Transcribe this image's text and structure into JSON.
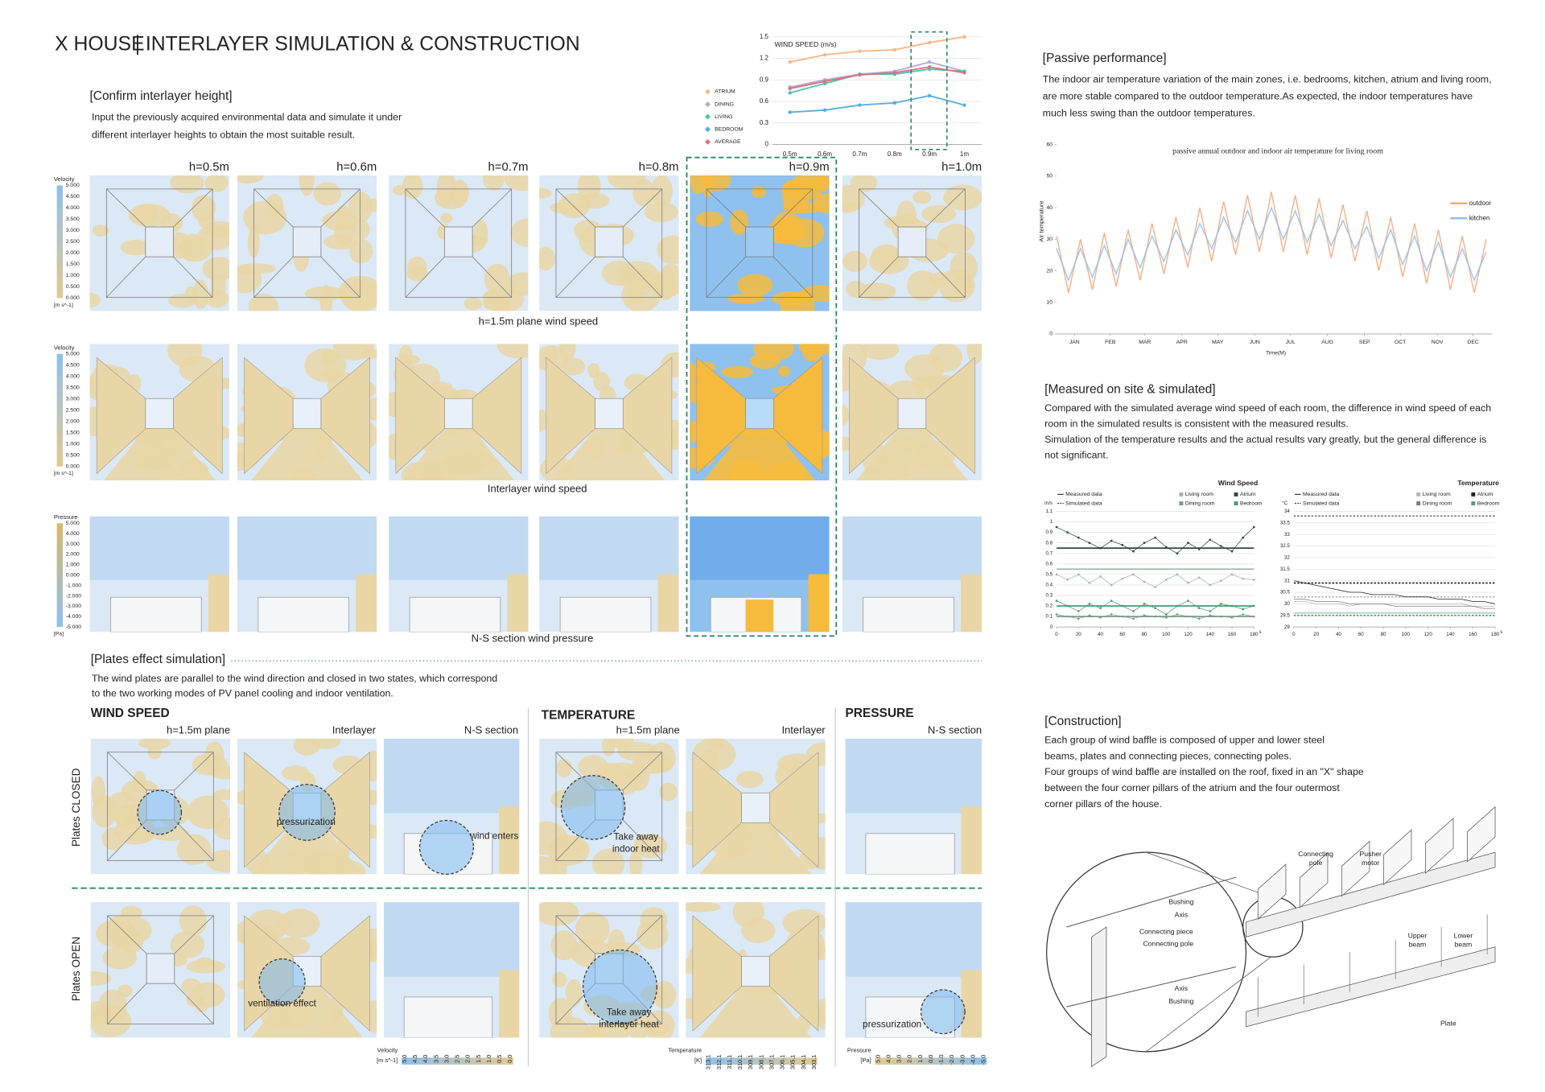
{
  "header": {
    "title": "X HOUSE",
    "subtitle": "INTERLAYER SIMULATION & CONSTRUCTION"
  },
  "interlayer": {
    "heading": "[Confirm interlayer height]",
    "text": [
      "Input the previously acquired environmental data and simulate it under",
      "different interlayer heights to obtain the most suitable result."
    ],
    "heights": [
      "h=0.5m",
      "h=0.6m",
      "h=0.7m",
      "h=0.8m",
      "h=0.9m",
      "h=1.0m"
    ],
    "rows": [
      "h=1.5m plane wind speed",
      "Interlayer wind speed",
      "N-S section wind pressure"
    ],
    "velocity_legend": {
      "title": "Velocity",
      "ticks": [
        "5.000",
        "4.500",
        "4.000",
        "3.500",
        "3.000",
        "2.500",
        "2.000",
        "1.500",
        "1.000",
        "0.500",
        "0.000"
      ],
      "unit": "[m s^-1]"
    },
    "pressure_legend": {
      "title": "Pressure",
      "ticks": [
        "5.000",
        "4.000",
        "3.000",
        "2.000",
        "1.000",
        "0.000",
        "-1.000",
        "-2.000",
        "-3.000",
        "-4.000",
        "-5.000"
      ],
      "unit": "[Pa]"
    }
  },
  "plates": {
    "heading": "[Plates effect simulation]",
    "text": [
      "The wind plates are parallel to the wind direction and closed in two states, which correspond",
      "to the two working modes of PV panel cooling and indoor ventilation."
    ],
    "groups": [
      "WIND SPEED",
      "TEMPERATURE",
      "PRESSURE"
    ],
    "columns": [
      "h=1.5m plane",
      "Interlayer",
      "N-S section",
      "h=1.5m plane",
      "Interlayer",
      "N-S section"
    ],
    "states": [
      "Plates CLOSED",
      "Plates OPEN"
    ],
    "annotations": [
      {
        "lines": [
          "pressurization"
        ]
      },
      {
        "lines": [
          "wind enters"
        ]
      },
      {
        "lines": [
          "Take away",
          "indoor heat"
        ]
      },
      {
        "lines": [
          "ventilation effect"
        ]
      },
      {
        "lines": [
          "Take away",
          "interlayer heat"
        ]
      },
      {
        "lines": [
          "pressurization"
        ]
      }
    ],
    "legends": [
      {
        "title": "Velocity",
        "unit": "[m s^-1]",
        "ticks": [
          "5.0",
          "4.5",
          "4.0",
          "3.5",
          "3.0",
          "2.5",
          "2.0",
          "1.5",
          "1.0",
          "0.5",
          "0.0"
        ]
      },
      {
        "title": "Temperature",
        "unit": "[K]",
        "ticks": [
          "313.1",
          "312.1",
          "311.1",
          "310.1",
          "309.1",
          "308.1",
          "307.1",
          "306.1",
          "305.1",
          "304.1",
          "303.1"
        ]
      },
      {
        "title": "Pressure",
        "unit": "[Pa]",
        "ticks": [
          "5.0",
          "4.0",
          "3.0",
          "2.0",
          "1.0",
          "0.0",
          "-1.0",
          "-2.0",
          "-3.0",
          "-4.0",
          "-5.0"
        ]
      }
    ]
  },
  "passive": {
    "heading": "[Passive performance]",
    "text": [
      "The indoor air temperature variation of the main zones, i.e. bedrooms, kitchen, atrium and living room,",
      "are more stable compared to the outdoor temperature.As expected, the indoor temperatures have",
      "much less swing than the outdoor temperatures."
    ]
  },
  "measured": {
    "heading": "[Measured on site & simulated]",
    "text": [
      "Compared with the simulated average wind speed of each room, the difference in wind speed of each",
      "room in the simulated results is consistent with the measured results.",
      "Simulation of the temperature results and the actual results vary greatly, but the general difference is",
      "not significant."
    ]
  },
  "construction": {
    "heading": "[Construction]",
    "text": [
      "Each group of wind baffle is composed of upper and lower steel",
      "beams, plates and connecting pieces, connecting poles.",
      "Four groups of wind baffle are installed on the roof, fixed in an \"X\" shape",
      "between the four corner pillars of the atrium and the four outermost",
      "corner pillars of the house."
    ],
    "labels": [
      {
        "lines": [
          "Connecting",
          "pole"
        ]
      },
      {
        "lines": [
          "Pusher",
          "motor"
        ]
      },
      {
        "lines": [
          "Bushing"
        ]
      },
      {
        "lines": [
          "Axis"
        ]
      },
      {
        "lines": [
          "Connecting piece"
        ]
      },
      {
        "lines": [
          "Connecting pole"
        ]
      },
      {
        "lines": [
          "Upper",
          "beam"
        ]
      },
      {
        "lines": [
          "Lower",
          "beam"
        ]
      },
      {
        "lines": [
          "Axis"
        ]
      },
      {
        "lines": [
          "Bushing"
        ]
      },
      {
        "lines": [
          "Plate"
        ]
      }
    ]
  },
  "chart_data": [
    {
      "type": "line",
      "title": "WIND SPEED (m/s)",
      "categories": [
        "0.5m",
        "0.6m",
        "0.7m",
        "0.8m",
        "0.9m",
        "1m"
      ],
      "ylim": [
        0,
        1.5
      ],
      "yticks": [
        0,
        0.3,
        0.6,
        0.9,
        1.2,
        1.5
      ],
      "grid": true,
      "markers": true,
      "series": [
        {
          "name": "ATRIUM",
          "color": "#f5b88a",
          "values": [
            1.15,
            1.25,
            1.3,
            1.32,
            1.42,
            1.5
          ]
        },
        {
          "name": "DINING",
          "color": "#b8a8d8",
          "values": [
            0.8,
            0.9,
            0.98,
            1.02,
            1.15,
            1.02
          ]
        },
        {
          "name": "LIVING",
          "color": "#4fc3b5",
          "values": [
            0.72,
            0.85,
            0.98,
            0.98,
            1.05,
            1.02
          ]
        },
        {
          "name": "BEDROOM",
          "color": "#5aaee0",
          "values": [
            0.45,
            0.48,
            0.55,
            0.58,
            0.68,
            0.55
          ]
        },
        {
          "name": "AVERAGE",
          "color": "#d9747a",
          "values": [
            0.78,
            0.88,
            0.97,
            1.0,
            1.08,
            1.0
          ]
        }
      ]
    },
    {
      "type": "line",
      "title": "passive annual outdoor and indoor air temperature for living room",
      "y_label": "Air temperature",
      "x_label": "Time(M)",
      "x": [
        0,
        10,
        20,
        30,
        40,
        50,
        60,
        70,
        80,
        90,
        100,
        110,
        120,
        130,
        140,
        150,
        160,
        170,
        180,
        190,
        200,
        210,
        220,
        230,
        240,
        250,
        260,
        270,
        280,
        290,
        300,
        310,
        320,
        330,
        340,
        350,
        360
      ],
      "xlim": [
        0,
        365
      ],
      "xticks": [
        {
          "value": 15,
          "label": "JAN"
        },
        {
          "value": 45,
          "label": "FEB"
        },
        {
          "value": 74,
          "label": "MAR"
        },
        {
          "value": 105,
          "label": "APR"
        },
        {
          "value": 135,
          "label": "MAY"
        },
        {
          "value": 166,
          "label": "JUN"
        },
        {
          "value": 196,
          "label": "JUL"
        },
        {
          "value": 227,
          "label": "AUG"
        },
        {
          "value": 258,
          "label": "SEP"
        },
        {
          "value": 288,
          "label": "OCT"
        },
        {
          "value": 319,
          "label": "NOV"
        },
        {
          "value": 349,
          "label": "DEC"
        }
      ],
      "ylim": [
        0,
        60
      ],
      "yticks": [
        0,
        10,
        20,
        30,
        40,
        50,
        60
      ],
      "grid": false,
      "series": [
        {
          "name": "outdoor",
          "color": "#f2a77a",
          "values": [
            31,
            13,
            30,
            14,
            32,
            15,
            33,
            17,
            35,
            19,
            37,
            21,
            40,
            23,
            42,
            25,
            44,
            26,
            45,
            26,
            44,
            25,
            43,
            24,
            41,
            23,
            39,
            20,
            37,
            18,
            35,
            16,
            33,
            14,
            31,
            13,
            30
          ]
        },
        {
          "name": "kitchen",
          "color": "#8fbfe8",
          "values": [
            27,
            17,
            27,
            18,
            28,
            19,
            30,
            21,
            31,
            23,
            33,
            25,
            35,
            27,
            37,
            29,
            39,
            30,
            40,
            30,
            39,
            29,
            38,
            28,
            36,
            27,
            34,
            24,
            33,
            22,
            31,
            20,
            29,
            18,
            27,
            17,
            26
          ]
        }
      ]
    },
    {
      "type": "line",
      "title": "Wind Speed",
      "y_label": "m/s",
      "x_unit": "s",
      "legend_styles": [
        "Measured data",
        "Simulated data"
      ],
      "markers": true,
      "grid": true,
      "x": [
        0,
        10,
        20,
        30,
        40,
        50,
        60,
        70,
        80,
        90,
        100,
        110,
        120,
        130,
        140,
        150,
        160,
        170,
        180
      ],
      "xlim": [
        0,
        180
      ],
      "xticks": [
        0,
        20,
        40,
        60,
        80,
        100,
        120,
        140,
        160,
        180
      ],
      "ylim": [
        0,
        1.1
      ],
      "yticks": [
        0,
        0.1,
        0.2,
        0.3,
        0.4,
        0.5,
        0.6,
        0.7,
        0.8,
        0.9,
        1,
        1.1
      ],
      "series": [
        {
          "name": "Living room",
          "color": "#9fb8a8",
          "simulated": 0.55,
          "values": [
            0.5,
            0.45,
            0.5,
            0.42,
            0.48,
            0.4,
            0.46,
            0.5,
            0.43,
            0.38,
            0.45,
            0.5,
            0.42,
            0.47,
            0.4,
            0.44,
            0.5,
            0.46,
            0.45
          ]
        },
        {
          "name": "Dining room",
          "color": "#7f9a8a",
          "simulated": 0.1,
          "values": [
            0.12,
            0.1,
            0.08,
            0.11,
            0.09,
            0.12,
            0.1,
            0.08,
            0.11,
            0.1,
            0.09,
            0.12,
            0.1,
            0.08,
            0.11,
            0.1,
            0.09,
            0.12,
            0.1
          ]
        },
        {
          "name": "Atrium",
          "color": "#2e4a3e",
          "simulated": 0.75,
          "values": [
            0.95,
            0.9,
            0.85,
            0.8,
            0.75,
            0.82,
            0.78,
            0.72,
            0.8,
            0.85,
            0.76,
            0.7,
            0.8,
            0.74,
            0.83,
            0.77,
            0.72,
            0.85,
            0.95
          ]
        },
        {
          "name": "Bedroom",
          "color": "#4f9a72",
          "simulated": 0.2,
          "values": [
            0.25,
            0.2,
            0.15,
            0.22,
            0.18,
            0.25,
            0.2,
            0.15,
            0.22,
            0.18,
            0.12,
            0.2,
            0.25,
            0.18,
            0.15,
            0.22,
            0.2,
            0.17,
            0.2
          ]
        }
      ]
    },
    {
      "type": "line",
      "title": "Temperature",
      "y_label": "°C",
      "x_unit": "s",
      "legend_styles": [
        "Measured data",
        "Simulated data"
      ],
      "markers": false,
      "grid": true,
      "x": [
        0,
        10,
        20,
        30,
        40,
        50,
        60,
        70,
        80,
        90,
        100,
        110,
        120,
        130,
        140,
        150,
        160,
        170,
        180
      ],
      "xlim": [
        0,
        180
      ],
      "xticks": [
        0,
        20,
        40,
        60,
        80,
        100,
        120,
        140,
        160,
        180
      ],
      "ylim": [
        29,
        34
      ],
      "yticks": [
        29,
        29.5,
        30,
        30.5,
        31,
        31.5,
        32,
        32.5,
        33,
        33.5,
        34
      ],
      "series": [
        {
          "name": "Living room",
          "color": "#b5b5b5",
          "simulated": 30.3,
          "values": [
            30.1,
            30.1,
            30.0,
            30.0,
            30.0,
            29.9,
            30.0,
            30.0,
            30.0,
            30.0,
            30.0,
            30.0,
            30.0,
            30.0,
            30.0,
            30.0,
            29.9,
            29.9,
            29.9
          ]
        },
        {
          "name": "Dining room",
          "color": "#7a7a7a",
          "simulated": 33.8,
          "values": [
            30.2,
            30.2,
            30.1,
            30.1,
            30.1,
            30.0,
            30.0,
            30.0,
            30.0,
            29.9,
            29.9,
            29.9,
            29.9,
            29.9,
            29.9,
            29.9,
            29.9,
            29.8,
            29.8
          ]
        },
        {
          "name": "Atrium",
          "color": "#222222",
          "simulated": 30.9,
          "values": [
            31.0,
            30.9,
            30.8,
            30.7,
            30.6,
            30.5,
            30.5,
            30.4,
            30.4,
            30.4,
            30.3,
            30.3,
            30.3,
            30.2,
            30.2,
            30.2,
            30.1,
            30.1,
            30.0
          ]
        },
        {
          "name": "Bedroom",
          "color": "#4f9a72",
          "simulated": 29.5,
          "values": [
            29.6,
            29.6,
            29.6,
            29.6,
            29.6,
            29.6,
            29.6,
            29.6,
            29.6,
            29.6,
            29.6,
            29.6,
            29.6,
            29.6,
            29.6,
            29.6,
            29.6,
            29.6,
            29.6
          ]
        }
      ]
    }
  ]
}
